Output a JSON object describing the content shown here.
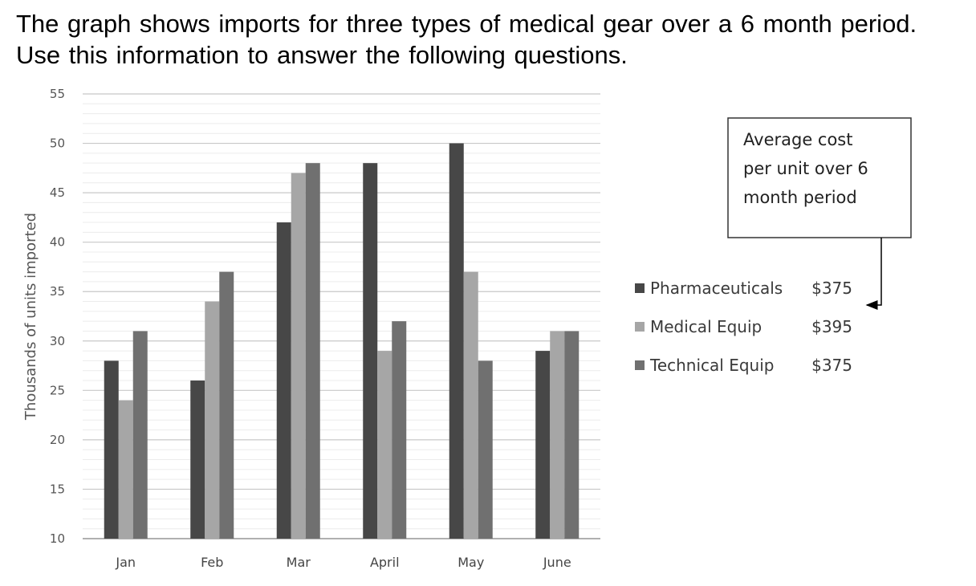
{
  "intro_text": "The graph shows imports for three types of medical gear over a 6 month period. Use this information to answer the following questions.",
  "chart_data": {
    "type": "bar",
    "title": "",
    "xlabel": "",
    "ylabel": "Thousands of units imported",
    "ylim": [
      10,
      55
    ],
    "yticks": [
      10,
      15,
      20,
      25,
      30,
      35,
      40,
      45,
      50,
      55
    ],
    "grid": true,
    "legend_position": "right",
    "categories": [
      "Jan",
      "Feb",
      "Mar",
      "April",
      "May",
      "June"
    ],
    "series": [
      {
        "name": "Pharmaceuticals",
        "cost": "$375",
        "color": "#474747",
        "values": [
          28,
          26,
          42,
          48,
          50,
          29
        ]
      },
      {
        "name": "Medical Equip",
        "cost": "$395",
        "color": "#a6a6a6",
        "values": [
          24,
          34,
          47,
          29,
          37,
          31
        ]
      },
      {
        "name": "Technical Equip",
        "cost": "$375",
        "color": "#707070",
        "values": [
          31,
          37,
          48,
          32,
          28,
          31
        ]
      }
    ],
    "annotation": {
      "lines": [
        "Average cost",
        "per unit over 6",
        "month period"
      ]
    }
  }
}
